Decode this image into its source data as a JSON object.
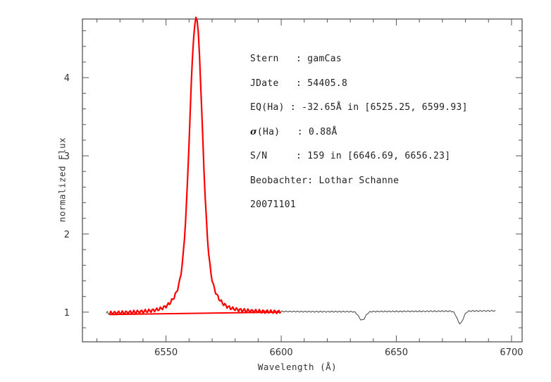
{
  "chart_data": {
    "type": "line",
    "title": "",
    "xlabel": "Wavelength (Å)",
    "ylabel": "normalized Flux",
    "xlim": [
      6513.7,
      6704.6
    ],
    "ylim": [
      0.62,
      4.75
    ],
    "x_ticks": [
      6550,
      6600,
      6650,
      6700
    ],
    "y_ticks": [
      1,
      2,
      3,
      4
    ],
    "x_minor_step": 10,
    "y_minor_step": 0.2,
    "grid": false,
    "series": [
      {
        "name": "spectrum",
        "color": "#000000",
        "x_range": [
          6524.0,
          6693.0
        ],
        "description": "full observed spectrum, black thin line"
      },
      {
        "name": "H-alpha region (EQ integration)",
        "color": "#ff0000",
        "x_range": [
          6525.25,
          6599.93
        ],
        "description": "highlighted H-alpha emission region, red thick line"
      },
      {
        "name": "continuum baseline",
        "color": "#ff0000",
        "x": [
          6525.25,
          6599.93
        ],
        "y": [
          0.97,
          1.0
        ]
      }
    ],
    "key_points": {
      "halpha_peak": {
        "x": 6563.1,
        "y": 4.55
      },
      "halpha_secondary_peak": {
        "x": 6561.6,
        "y": 4.49
      },
      "absorption_1": {
        "x": 6635.1,
        "y": 0.89
      },
      "absorption_2": {
        "x": 6677.7,
        "y": 0.83
      }
    },
    "annotations": [
      "Stern   : gamCas",
      "JDate   : 54405.8",
      "EQ(Ha) : -32.65Å in [6525.25, 6599.93]",
      "σ(Ha)   : 0.88Å",
      "S/N     : 159 in [6646.69, 6656.23]",
      "Beobachter: Lothar Schanne",
      "20071101"
    ]
  },
  "info": {
    "star_label": "Stern   : gamCas",
    "jdate_label": "JDate   : 54405.8",
    "eq_label": "EQ(Ha) : -32.65Å in [6525.25, 6599.93]",
    "sigma_symbol": "σ",
    "sigma_rest": "(Ha)   : 0.88Å",
    "sn_label": "S/N     : 159 in [6646.69, 6656.23]",
    "observer_label": "Beobachter: Lothar Schanne",
    "date_label": "20071101"
  },
  "axes": {
    "xlabel": "Wavelength (Å)",
    "ylabel": "normalized Flux",
    "x_tick_labels": [
      "6550",
      "6600",
      "6650",
      "6700"
    ],
    "y_tick_labels": [
      "1",
      "2",
      "3",
      "4"
    ]
  },
  "colors": {
    "frame": "#555555",
    "spectrum": "#333333",
    "highlight": "#ff0000"
  }
}
